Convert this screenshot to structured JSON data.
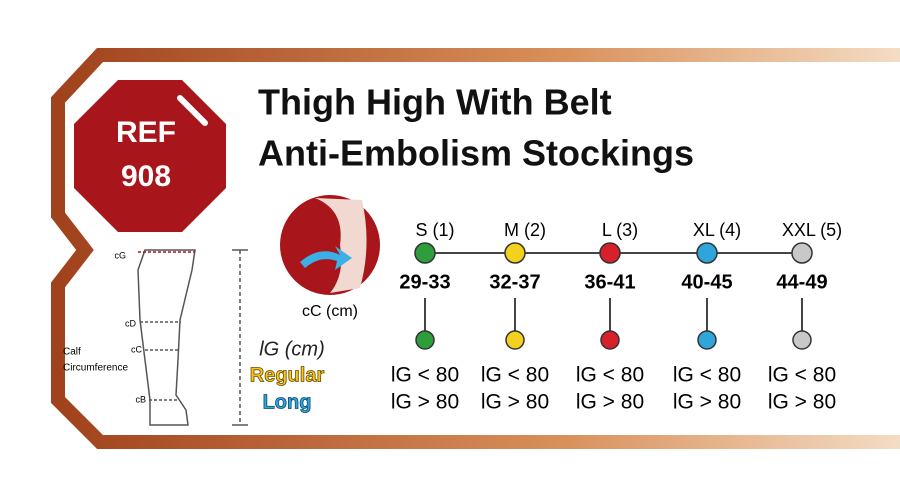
{
  "badge": {
    "line1": "REF",
    "line2": "908"
  },
  "title": {
    "line1": "Thigh High With Belt",
    "line2": "Anti-Embolism Stockings"
  },
  "leg": {
    "cG": "cG",
    "cD": "cD",
    "cC": "cC",
    "cB": "cB",
    "calf1": "Calf",
    "calf2": "Circumference"
  },
  "circumference_label": "cC (cm)",
  "length_label": "lG (cm)",
  "regular": "Regular",
  "long": "Long",
  "sizes": [
    {
      "name": "S (1)",
      "range": "29-33",
      "color": "#2e9e3c",
      "regular": "lG < 80",
      "long": "lG > 80"
    },
    {
      "name": "M (2)",
      "range": "32-37",
      "color": "#f2d21e",
      "regular": "lG < 80",
      "long": "lG > 80"
    },
    {
      "name": "L (3)",
      "range": "36-41",
      "color": "#d8202a",
      "regular": "lG < 80",
      "long": "lG > 80"
    },
    {
      "name": "XL (4)",
      "range": "40-45",
      "color": "#2ea6dc",
      "regular": "lG < 80",
      "long": "lG > 80"
    },
    {
      "name": "XXL (5)",
      "range": "44-49",
      "color": "#c8c8c8",
      "regular": "lG < 80",
      "long": "lG > 80"
    }
  ]
}
